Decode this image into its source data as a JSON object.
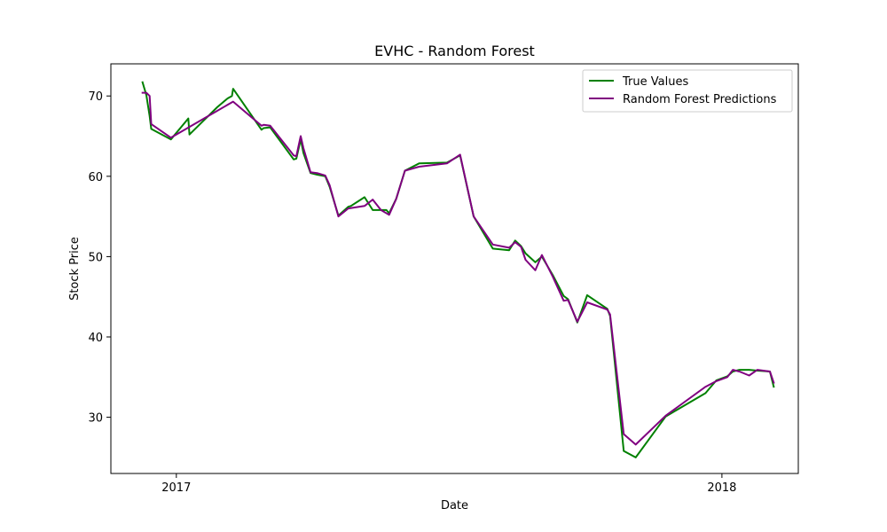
{
  "chart_data": {
    "type": "line",
    "title": "EVHC - Random Forest",
    "xlabel": "Date",
    "ylabel": "Stock Price",
    "xlim": [
      2016.88,
      2018.14
    ],
    "ylim": [
      23.0,
      74.0
    ],
    "x_ticks": [
      {
        "value": 2017.0,
        "label": "2017"
      },
      {
        "value": 2018.0,
        "label": "2018"
      }
    ],
    "y_ticks": [
      {
        "value": 30,
        "label": "30"
      },
      {
        "value": 40,
        "label": "40"
      },
      {
        "value": 50,
        "label": "50"
      },
      {
        "value": 60,
        "label": "60"
      },
      {
        "value": 70,
        "label": "70"
      }
    ],
    "legend_position": "top-right",
    "series": [
      {
        "name": "True Values",
        "color": "#008000",
        "x": [
          2016.938,
          2016.945,
          2016.951,
          2016.954,
          2016.99,
          2017.022,
          2017.024,
          2017.075,
          2017.094,
          2017.102,
          2017.104,
          2017.156,
          2017.16,
          2017.172,
          2017.215,
          2017.22,
          2017.228,
          2017.233,
          2017.246,
          2017.258,
          2017.273,
          2017.281,
          2017.297,
          2017.315,
          2017.32,
          2017.345,
          2017.36,
          2017.375,
          2017.385,
          2017.39,
          2017.403,
          2017.419,
          2017.445,
          2017.496,
          2017.52,
          2017.545,
          2017.58,
          2017.61,
          2017.621,
          2017.632,
          2017.64,
          2017.658,
          2017.67,
          2017.69,
          2017.71,
          2017.718,
          2017.735,
          2017.753,
          2017.79,
          2017.795,
          2017.82,
          2017.842,
          2017.897,
          2017.97,
          2017.99,
          2018.01,
          2018.02,
          2018.032,
          2018.05,
          2018.065,
          2018.088,
          2018.095
        ],
        "y": [
          71.7,
          70.1,
          67.5,
          65.9,
          64.6,
          67.2,
          65.2,
          68.6,
          69.7,
          70.0,
          70.9,
          65.8,
          66.0,
          66.1,
          62.1,
          62.2,
          64.6,
          62.9,
          60.4,
          60.2,
          60.0,
          58.7,
          55.1,
          56.2,
          56.3,
          57.4,
          55.8,
          55.8,
          55.8,
          55.4,
          57.2,
          60.7,
          61.6,
          61.7,
          62.6,
          55.0,
          51.0,
          50.8,
          52.0,
          51.3,
          50.4,
          49.3,
          50.0,
          47.7,
          45.1,
          44.7,
          41.8,
          45.2,
          43.5,
          42.6,
          25.8,
          25.0,
          30.1,
          33.0,
          34.6,
          35.1,
          35.7,
          35.9,
          35.9,
          35.8,
          35.7,
          33.8
        ]
      },
      {
        "name": "Random Forest Predictions",
        "color": "#800080",
        "x": [
          2016.938,
          2016.945,
          2016.951,
          2016.954,
          2016.99,
          2017.104,
          2017.156,
          2017.16,
          2017.172,
          2017.215,
          2017.22,
          2017.228,
          2017.233,
          2017.246,
          2017.258,
          2017.273,
          2017.281,
          2017.297,
          2017.315,
          2017.345,
          2017.36,
          2017.375,
          2017.39,
          2017.403,
          2017.419,
          2017.445,
          2017.496,
          2017.52,
          2017.545,
          2017.58,
          2017.61,
          2017.621,
          2017.632,
          2017.64,
          2017.658,
          2017.67,
          2017.69,
          2017.71,
          2017.718,
          2017.735,
          2017.753,
          2017.79,
          2017.795,
          2017.82,
          2017.842,
          2017.897,
          2017.97,
          2017.99,
          2018.01,
          2018.02,
          2018.032,
          2018.05,
          2018.065,
          2018.088,
          2018.095
        ],
        "y": [
          70.4,
          70.4,
          70.0,
          66.5,
          64.8,
          69.3,
          66.3,
          66.4,
          66.3,
          62.6,
          62.5,
          65.0,
          63.5,
          60.5,
          60.4,
          60.1,
          58.9,
          55.0,
          56.0,
          56.3,
          57.1,
          55.8,
          55.2,
          57.2,
          60.7,
          61.2,
          61.6,
          62.7,
          55.0,
          51.5,
          51.1,
          51.8,
          51.2,
          49.6,
          48.3,
          50.2,
          47.5,
          44.5,
          44.6,
          41.9,
          44.3,
          43.4,
          42.8,
          27.9,
          26.6,
          30.2,
          33.8,
          34.5,
          35.0,
          35.9,
          35.7,
          35.2,
          35.9,
          35.7,
          34.3
        ]
      }
    ]
  }
}
